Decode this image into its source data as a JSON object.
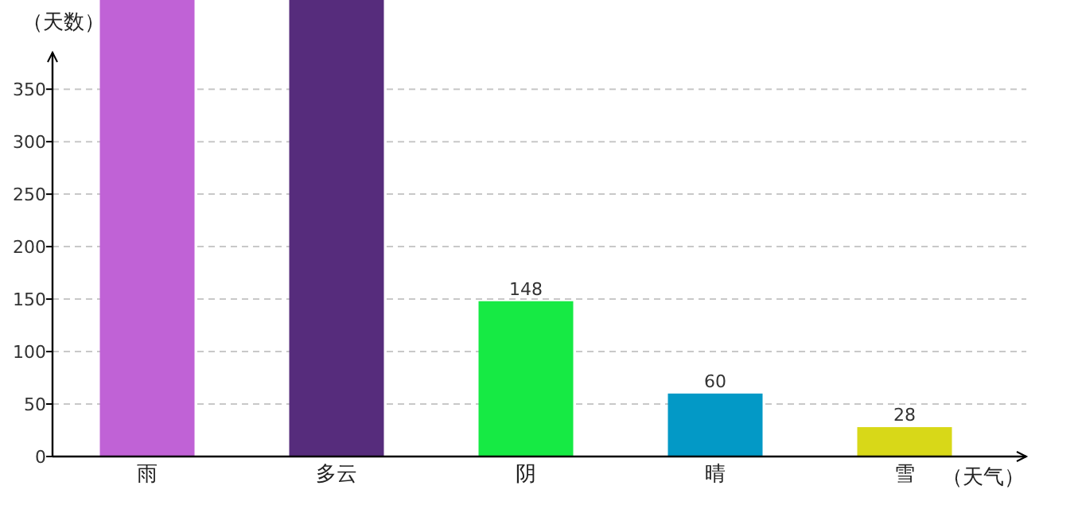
{
  "chart_data": {
    "type": "bar",
    "xlabel": "（天气）",
    "ylabel": "（天数）",
    "categories": [
      "雨",
      "多云",
      "阴",
      "晴",
      "雪"
    ],
    "values": [
      435,
      435,
      148,
      60,
      28
    ],
    "colors": [
      "#c062d6",
      "#562c7c",
      "#16ea44",
      "#0399c6",
      "#d8d818"
    ],
    "value_labels": [
      null,
      null,
      "148",
      "60",
      "28"
    ],
    "ylim": [
      0,
      435
    ],
    "yticks": [
      0,
      50,
      100,
      150,
      200,
      250,
      300,
      350
    ],
    "grid": "y"
  }
}
